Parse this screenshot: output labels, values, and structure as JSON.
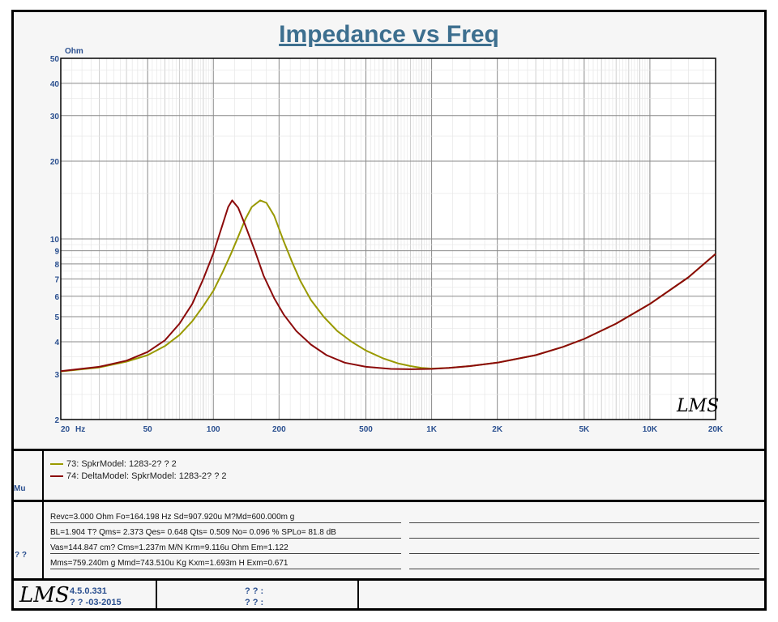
{
  "chart_data": {
    "type": "line",
    "title": "Impedance vs Freq",
    "ylabel": "Ohm",
    "xunit_label": "Hz",
    "xscale": "log",
    "yscale": "log",
    "xlim": [
      20,
      20000
    ],
    "ylim": [
      2,
      50
    ],
    "grid": true,
    "x_ticks": [
      "20",
      "50",
      "100",
      "200",
      "500",
      "1K",
      "2K",
      "5K",
      "10K",
      "20K"
    ],
    "y_ticks": [
      "2",
      "3",
      "4",
      "5",
      "6",
      "7",
      "8",
      "9",
      "10",
      "20",
      "30",
      "40",
      "50"
    ],
    "watermark": "LMS",
    "series": [
      {
        "name": "73: SpkrModel: 1283-2? ? 2",
        "color": "#999900",
        "points": [
          [
            20,
            3.07
          ],
          [
            30,
            3.18
          ],
          [
            40,
            3.35
          ],
          [
            50,
            3.55
          ],
          [
            60,
            3.85
          ],
          [
            70,
            4.25
          ],
          [
            80,
            4.8
          ],
          [
            90,
            5.5
          ],
          [
            100,
            6.3
          ],
          [
            110,
            7.4
          ],
          [
            120,
            8.7
          ],
          [
            130,
            10.2
          ],
          [
            140,
            11.9
          ],
          [
            150,
            13.3
          ],
          [
            164,
            14.1
          ],
          [
            175,
            13.8
          ],
          [
            190,
            12.3
          ],
          [
            210,
            9.8
          ],
          [
            230,
            8.1
          ],
          [
            250,
            6.9
          ],
          [
            280,
            5.8
          ],
          [
            320,
            5.0
          ],
          [
            370,
            4.4
          ],
          [
            430,
            4.0
          ],
          [
            500,
            3.7
          ],
          [
            600,
            3.45
          ],
          [
            700,
            3.3
          ],
          [
            800,
            3.22
          ],
          [
            900,
            3.17
          ],
          [
            1000,
            3.15
          ],
          [
            1200,
            3.17
          ],
          [
            1500,
            3.22
          ],
          [
            2000,
            3.32
          ],
          [
            3000,
            3.55
          ],
          [
            4000,
            3.82
          ],
          [
            5000,
            4.1
          ],
          [
            7000,
            4.7
          ],
          [
            10000,
            5.6
          ],
          [
            15000,
            7.1
          ],
          [
            20000,
            8.75
          ]
        ]
      },
      {
        "name": "74: DeltaModel: SpkrModel: 1283-2? ? 2",
        "color": "#8b0a0a",
        "points": [
          [
            20,
            3.08
          ],
          [
            30,
            3.2
          ],
          [
            40,
            3.38
          ],
          [
            50,
            3.65
          ],
          [
            60,
            4.05
          ],
          [
            70,
            4.7
          ],
          [
            80,
            5.6
          ],
          [
            90,
            7.0
          ],
          [
            100,
            8.8
          ],
          [
            110,
            11.3
          ],
          [
            117,
            13.3
          ],
          [
            122,
            14.1
          ],
          [
            130,
            13.2
          ],
          [
            140,
            11.3
          ],
          [
            155,
            9.0
          ],
          [
            170,
            7.2
          ],
          [
            190,
            5.9
          ],
          [
            210,
            5.1
          ],
          [
            240,
            4.4
          ],
          [
            280,
            3.9
          ],
          [
            330,
            3.55
          ],
          [
            400,
            3.32
          ],
          [
            500,
            3.2
          ],
          [
            650,
            3.14
          ],
          [
            800,
            3.13
          ],
          [
            1000,
            3.14
          ],
          [
            1200,
            3.17
          ],
          [
            1500,
            3.22
          ],
          [
            2000,
            3.32
          ],
          [
            3000,
            3.55
          ],
          [
            4000,
            3.82
          ],
          [
            5000,
            4.1
          ],
          [
            7000,
            4.7
          ],
          [
            10000,
            5.6
          ],
          [
            15000,
            7.1
          ],
          [
            20000,
            8.75
          ]
        ]
      }
    ]
  },
  "legend_title": "Mu",
  "params_title": "? ?",
  "params": [
    "Revc=3.000 Ohm  Fo=164.198 Hz  Sd=907.920u M?Md=600.000m g",
    "BL=1.904 T?   Qms= 2.373  Qes= 0.648  Qts= 0.509  No= 0.096 %   SPLo= 81.8 dB",
    "Vas=144.847 cm? Cms=1.237m M/N  Krm=9.116u Ohm  Em=1.122",
    "Mms=759.240m g  Mmd=743.510u Kg  Kxm=1.693m H  Exm=0.671"
  ],
  "footer": {
    "logo": "LMS",
    "version": "4.5.0.331",
    "date": "? ? -03-2015",
    "field1": "? ? :",
    "field2": "? ? :"
  }
}
